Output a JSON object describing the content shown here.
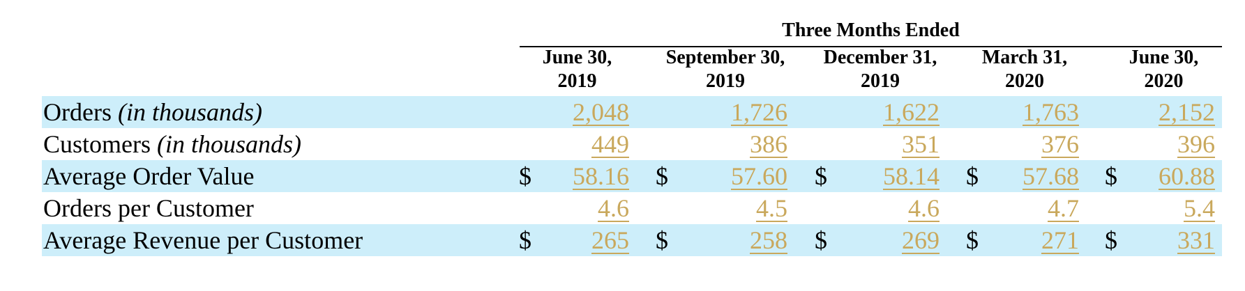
{
  "header": {
    "group_title": "Three Months Ended",
    "columns": [
      {
        "line1": "June 30,",
        "line2": "2019"
      },
      {
        "line1": "September 30,",
        "line2": "2019"
      },
      {
        "line1": "December 31,",
        "line2": "2019"
      },
      {
        "line1": "March 31,",
        "line2": "2020"
      },
      {
        "line1": "June 30,",
        "line2": "2020"
      }
    ]
  },
  "rows": [
    {
      "label": "Orders ",
      "qualifier": "(in thousands)",
      "currency": "",
      "values": [
        "2,048",
        "1,726",
        "1,622",
        "1,763",
        "2,152"
      ]
    },
    {
      "label": "Customers ",
      "qualifier": "(in thousands)",
      "currency": "",
      "values": [
        "449",
        "386",
        "351",
        "376",
        "396"
      ]
    },
    {
      "label": "Average Order Value",
      "qualifier": "",
      "currency": "$",
      "values": [
        "58.16",
        "57.60",
        "58.14",
        "57.68",
        "60.88"
      ]
    },
    {
      "label": "Orders per Customer",
      "qualifier": "",
      "currency": "",
      "values": [
        "4.6",
        "4.5",
        "4.6",
        "4.7",
        "5.4"
      ]
    },
    {
      "label": "Average Revenue per Customer",
      "qualifier": "",
      "currency": "$",
      "values": [
        "265",
        "258",
        "269",
        "271",
        "331"
      ]
    }
  ],
  "colors": {
    "shade": "#cdeefa",
    "link": "#c9a85c"
  }
}
